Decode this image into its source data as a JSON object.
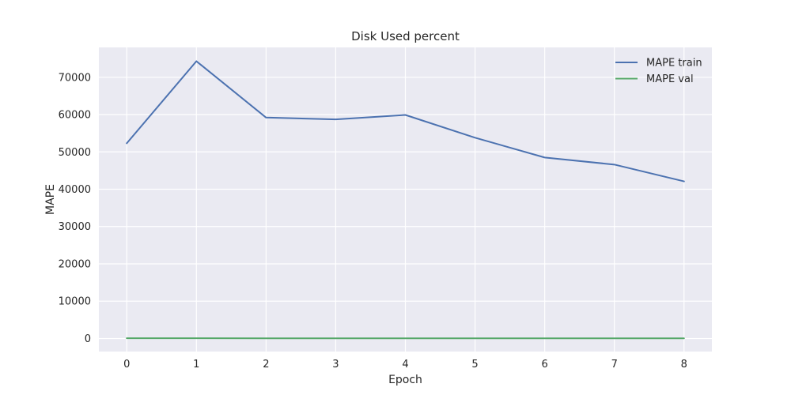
{
  "chart_data": {
    "type": "line",
    "title": "Disk Used percent",
    "xlabel": "Epoch",
    "ylabel": "MAPE",
    "x": [
      0,
      1,
      2,
      3,
      4,
      5,
      6,
      7,
      8
    ],
    "xlim": [
      -0.4,
      8.4
    ],
    "ylim": [
      -3500,
      78000
    ],
    "xticks": [
      0,
      1,
      2,
      3,
      4,
      5,
      6,
      7,
      8
    ],
    "yticks": [
      0,
      10000,
      20000,
      30000,
      40000,
      50000,
      60000,
      70000
    ],
    "grid": true,
    "legend_position": "top-right",
    "series": [
      {
        "name": "MAPE train",
        "color": "#4c72b0",
        "values": [
          52300,
          74300,
          59200,
          58700,
          59900,
          53800,
          48500,
          46600,
          42100
        ]
      },
      {
        "name": "MAPE val",
        "color": "#55a868",
        "values": [
          60,
          70,
          50,
          50,
          40,
          45,
          40,
          40,
          35
        ]
      }
    ]
  }
}
